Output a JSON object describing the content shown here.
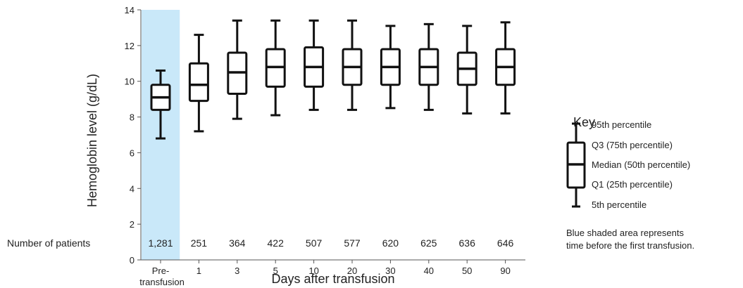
{
  "chart_data": {
    "type": "box",
    "ylabel": "Hemoglobin level (g/dL)",
    "xlabel": "Days after transfusion",
    "ylim": [
      0,
      14
    ],
    "yticks": [
      0,
      2,
      4,
      6,
      8,
      10,
      12,
      14
    ],
    "grid": false,
    "count_label": "Number of patients",
    "categories": [
      {
        "line1": "Pre-",
        "line2": "transfusion"
      },
      {
        "line1": "1",
        "line2": ""
      },
      {
        "line1": "3",
        "line2": ""
      },
      {
        "line1": "5",
        "line2": ""
      },
      {
        "line1": "10",
        "line2": ""
      },
      {
        "line1": "20",
        "line2": ""
      },
      {
        "line1": "30",
        "line2": ""
      },
      {
        "line1": "40",
        "line2": ""
      },
      {
        "line1": "50",
        "line2": ""
      },
      {
        "line1": "90",
        "line2": ""
      }
    ],
    "counts": [
      "1,281",
      "251",
      "364",
      "422",
      "507",
      "577",
      "620",
      "625",
      "636",
      "646"
    ],
    "boxes": [
      {
        "p5": 6.8,
        "q1": 8.4,
        "median": 9.1,
        "q3": 9.8,
        "p95": 10.6
      },
      {
        "p5": 7.2,
        "q1": 8.9,
        "median": 9.8,
        "q3": 11.0,
        "p95": 12.6
      },
      {
        "p5": 7.9,
        "q1": 9.3,
        "median": 10.5,
        "q3": 11.6,
        "p95": 13.4
      },
      {
        "p5": 8.1,
        "q1": 9.7,
        "median": 10.8,
        "q3": 11.8,
        "p95": 13.4
      },
      {
        "p5": 8.4,
        "q1": 9.7,
        "median": 10.8,
        "q3": 11.9,
        "p95": 13.4
      },
      {
        "p5": 8.4,
        "q1": 9.8,
        "median": 10.8,
        "q3": 11.8,
        "p95": 13.4
      },
      {
        "p5": 8.5,
        "q1": 9.8,
        "median": 10.8,
        "q3": 11.8,
        "p95": 13.1
      },
      {
        "p5": 8.4,
        "q1": 9.8,
        "median": 10.8,
        "q3": 11.8,
        "p95": 13.2
      },
      {
        "p5": 8.2,
        "q1": 9.8,
        "median": 10.7,
        "q3": 11.6,
        "p95": 13.1
      },
      {
        "p5": 8.2,
        "q1": 9.8,
        "median": 10.8,
        "q3": 11.8,
        "p95": 13.3
      }
    ],
    "shaded_category_index": 0,
    "shade_color": "#c9e8f9",
    "box_color": "#111111",
    "key": {
      "title": "Key",
      "labels": {
        "p95": "95th percentile",
        "q3": "Q3 (75th percentile)",
        "median": "Median (50th percentile)",
        "q1": "Q1 (25th percentile)",
        "p5": "5th percentile"
      },
      "note_line1": "Blue shaded area represents",
      "note_line2": "time before the first transfusion."
    }
  }
}
